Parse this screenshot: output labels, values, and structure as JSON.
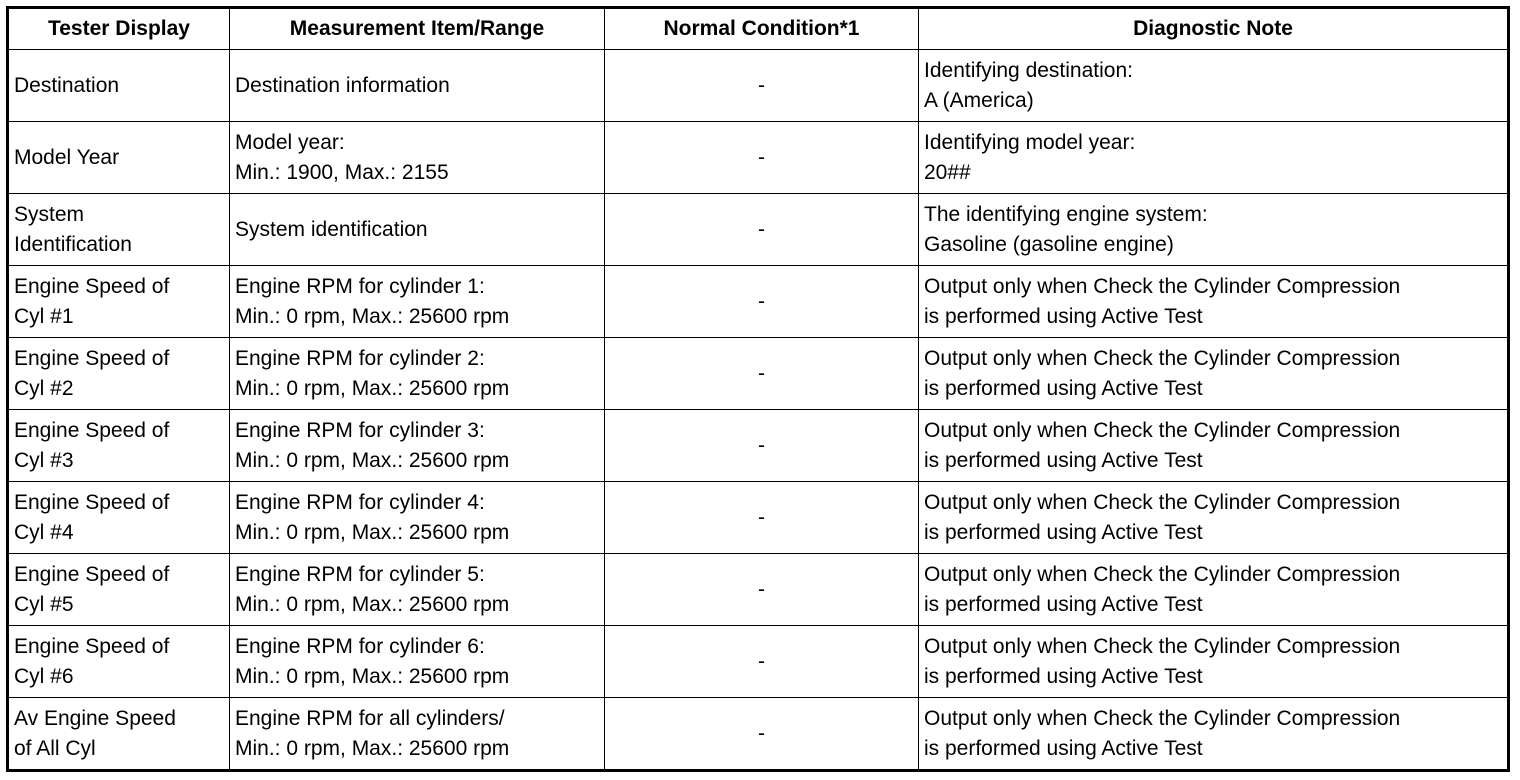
{
  "table": {
    "header": [
      "Tester Display",
      "Measurement Item/Range",
      "Normal Condition*1",
      "Diagnostic Note"
    ],
    "rows": [
      [
        [
          "Destination"
        ],
        [
          "Destination information"
        ],
        [
          "-"
        ],
        [
          "Identifying destination:",
          "A (America)"
        ]
      ],
      [
        [
          "Model Year"
        ],
        [
          "Model year:",
          "Min.: 1900, Max.: 2155"
        ],
        [
          "-"
        ],
        [
          "Identifying model year:",
          "20##"
        ]
      ],
      [
        [
          "System",
          "Identification"
        ],
        [
          "System identification"
        ],
        [
          "-"
        ],
        [
          "The identifying engine system:",
          "Gasoline (gasoline engine)"
        ]
      ],
      [
        [
          "Engine Speed of",
          "Cyl #1"
        ],
        [
          "Engine RPM for cylinder 1:",
          "Min.: 0 rpm, Max.: 25600 rpm"
        ],
        [
          "-"
        ],
        [
          "Output only when Check the Cylinder Compression",
          "is performed using Active Test"
        ]
      ],
      [
        [
          "Engine Speed of",
          "Cyl #2"
        ],
        [
          "Engine RPM for cylinder 2:",
          "Min.: 0 rpm, Max.: 25600 rpm"
        ],
        [
          "-"
        ],
        [
          "Output only when Check the Cylinder Compression",
          "is performed using Active Test"
        ]
      ],
      [
        [
          "Engine Speed of",
          "Cyl #3"
        ],
        [
          "Engine RPM for cylinder 3:",
          "Min.: 0 rpm, Max.: 25600 rpm"
        ],
        [
          "-"
        ],
        [
          "Output only when Check the Cylinder Compression",
          "is performed using Active Test"
        ]
      ],
      [
        [
          "Engine Speed of",
          "Cyl #4"
        ],
        [
          "Engine RPM for cylinder 4:",
          "Min.: 0 rpm, Max.: 25600 rpm"
        ],
        [
          "-"
        ],
        [
          "Output only when Check the Cylinder Compression",
          "is performed using Active Test"
        ]
      ],
      [
        [
          "Engine Speed of",
          "Cyl #5"
        ],
        [
          "Engine RPM for cylinder 5:",
          "Min.: 0 rpm, Max.: 25600 rpm"
        ],
        [
          "-"
        ],
        [
          "Output only when Check the Cylinder Compression",
          "is performed using Active Test"
        ]
      ],
      [
        [
          "Engine Speed of",
          "Cyl #6"
        ],
        [
          "Engine RPM for cylinder 6:",
          "Min.: 0 rpm, Max.: 25600 rpm"
        ],
        [
          "-"
        ],
        [
          "Output only when Check the Cylinder Compression",
          "is performed using Active Test"
        ]
      ],
      [
        [
          "Av Engine Speed",
          "of All Cyl"
        ],
        [
          "Engine RPM for all cylinders/",
          "Min.: 0 rpm, Max.: 25600 rpm"
        ],
        [
          "-"
        ],
        [
          "Output only when Check the Cylinder Compression",
          "is performed using Active Test"
        ]
      ]
    ]
  }
}
